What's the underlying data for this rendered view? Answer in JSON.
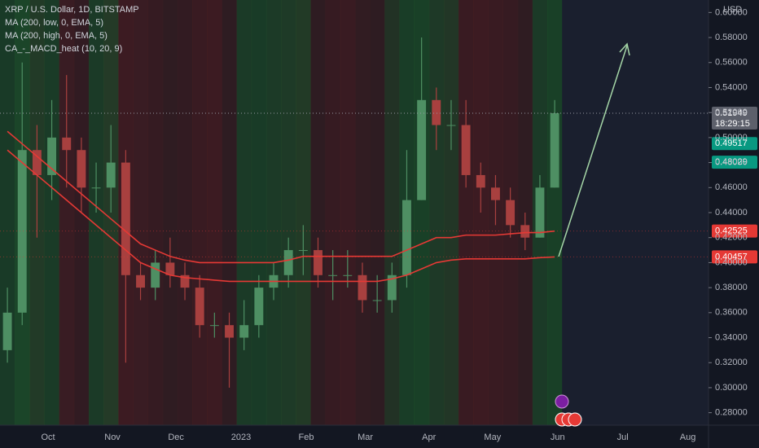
{
  "chart_data": {
    "type": "candlestick",
    "title": "XRP / U.S. Dollar, 1D, BITSTAMP",
    "axis_unit": "USD",
    "categories": [
      null,
      null,
      null,
      null,
      null,
      null,
      null,
      null,
      null,
      null,
      null,
      null,
      null,
      null,
      null,
      null,
      null,
      null,
      null,
      null,
      null,
      null,
      null,
      null,
      null,
      null,
      null,
      null,
      null,
      null,
      null,
      null,
      null,
      null,
      null,
      null,
      null,
      null
    ],
    "open": [
      0.33,
      0.36,
      0.49,
      0.47,
      0.5,
      0.49,
      0.46,
      0.46,
      0.48,
      0.39,
      0.38,
      0.4,
      0.39,
      0.38,
      0.35,
      0.35,
      0.34,
      0.35,
      0.38,
      0.39,
      0.41,
      0.41,
      0.39,
      0.39,
      0.39,
      0.37,
      0.37,
      0.39,
      0.45,
      0.53,
      0.51,
      0.51,
      0.47,
      0.46,
      0.45,
      0.43,
      0.42,
      0.46
    ],
    "high": [
      0.38,
      0.56,
      0.51,
      0.53,
      0.55,
      0.5,
      0.48,
      0.51,
      0.49,
      0.4,
      0.41,
      0.42,
      0.4,
      0.39,
      0.36,
      0.36,
      0.37,
      0.39,
      0.4,
      0.42,
      0.43,
      0.42,
      0.41,
      0.41,
      0.4,
      0.39,
      0.4,
      0.49,
      0.58,
      0.54,
      0.53,
      0.53,
      0.48,
      0.47,
      0.46,
      0.44,
      0.47,
      0.53
    ],
    "low": [
      0.32,
      0.35,
      0.42,
      0.45,
      0.46,
      0.44,
      0.44,
      0.44,
      0.32,
      0.37,
      0.37,
      0.38,
      0.37,
      0.34,
      0.34,
      0.3,
      0.33,
      0.34,
      0.37,
      0.38,
      0.39,
      0.38,
      0.37,
      0.38,
      0.36,
      0.36,
      0.36,
      0.38,
      0.45,
      0.49,
      0.49,
      0.46,
      0.44,
      0.43,
      0.42,
      0.41,
      0.42,
      0.46
    ],
    "close": [
      0.36,
      0.49,
      0.47,
      0.5,
      0.49,
      0.46,
      0.46,
      0.48,
      0.39,
      0.38,
      0.4,
      0.39,
      0.38,
      0.35,
      0.35,
      0.34,
      0.35,
      0.38,
      0.39,
      0.41,
      0.41,
      0.39,
      0.39,
      0.39,
      0.37,
      0.37,
      0.39,
      0.45,
      0.53,
      0.51,
      0.51,
      0.47,
      0.46,
      0.45,
      0.43,
      0.42,
      0.46,
      0.51949
    ],
    "up_color": "#4e8f63",
    "down_color": "#a8403f",
    "heat": [
      "#1d4a2a",
      "#1f5a2c",
      "#2a4a2a",
      "#1e4c2a",
      "#4a1f24",
      "#3e1e22",
      "#1f4a2a",
      "#2c4a2a",
      "#4e1e22",
      "#4a1f24",
      "#441e22",
      "#3c1f22",
      "#401e22",
      "#4a1e22",
      "#4e1e22",
      "#3a1f22",
      "#1f4a2a",
      "#1d4c2a",
      "#214a2a",
      "#244a2a",
      "#2a4a28",
      "#3a1f22",
      "#461e22",
      "#4a1e22",
      "#3e1f22",
      "#3a1f22",
      "#2a3e26",
      "#1d4e2a",
      "#1d522a",
      "#24482a",
      "#2a4428",
      "#4a1e22",
      "#4e1e22",
      "#4a1e22",
      "#461e22",
      "#3c1f22",
      "#1f4a2a",
      "#1d522a"
    ],
    "series": [
      {
        "name": "MA (200, low, 0, EMA, 5)",
        "color": "#e53935",
        "values": [
          0.49,
          0.48,
          0.47,
          0.46,
          0.45,
          0.44,
          0.43,
          0.42,
          0.41,
          0.4,
          0.395,
          0.39,
          0.388,
          0.387,
          0.386,
          0.385,
          0.385,
          0.385,
          0.385,
          0.385,
          0.385,
          0.385,
          0.385,
          0.385,
          0.385,
          0.385,
          0.387,
          0.39,
          0.395,
          0.4,
          0.402,
          0.403,
          0.403,
          0.403,
          0.403,
          0.403,
          0.404,
          0.40457
        ]
      },
      {
        "name": "MA (200, high, 0, EMA, 5)",
        "color": "#e53935",
        "values": [
          0.505,
          0.495,
          0.485,
          0.475,
          0.465,
          0.455,
          0.445,
          0.435,
          0.425,
          0.415,
          0.41,
          0.405,
          0.402,
          0.4,
          0.4,
          0.4,
          0.4,
          0.4,
          0.4,
          0.402,
          0.405,
          0.405,
          0.405,
          0.405,
          0.405,
          0.405,
          0.405,
          0.41,
          0.415,
          0.42,
          0.42,
          0.422,
          0.422,
          0.422,
          0.423,
          0.424,
          0.424,
          0.42525
        ]
      }
    ],
    "indicator": "CA_-_MACD_heat (10, 20, 9)",
    "price_markers": [
      {
        "value": 0.49517,
        "color": "#089981"
      },
      {
        "value": 0.48029,
        "color": "#089981"
      }
    ],
    "countdown": "18:29:15",
    "ylim": [
      0.27,
      0.61
    ],
    "yticks": [
      {
        "value": 0.28,
        "label": "0.28000"
      },
      {
        "value": 0.3,
        "label": "0.30000"
      },
      {
        "value": 0.32,
        "label": "0.32000"
      },
      {
        "value": 0.34,
        "label": "0.34000"
      },
      {
        "value": 0.36,
        "label": "0.36000"
      },
      {
        "value": 0.38,
        "label": "0.38000"
      },
      {
        "value": 0.4,
        "label": "0.40000"
      },
      {
        "value": 0.42,
        "label": "0.42000"
      },
      {
        "value": 0.44,
        "label": "0.44000"
      },
      {
        "value": 0.46,
        "label": "0.46000"
      },
      {
        "value": 0.48,
        "label": "0.48000"
      },
      {
        "value": 0.5,
        "label": "0.50000"
      },
      {
        "value": 0.52,
        "label": "0.52000"
      },
      {
        "value": 0.54,
        "label": "0.54000"
      },
      {
        "value": 0.56,
        "label": "0.56000"
      },
      {
        "value": 0.58,
        "label": "0.58000"
      },
      {
        "value": 0.6,
        "label": "0.60000"
      }
    ],
    "xlim": [
      -0.5,
      47.4
    ],
    "xticks": [
      {
        "value": 2.75,
        "label": "Oct"
      },
      {
        "value": 7.1,
        "label": "Nov"
      },
      {
        "value": 11.4,
        "label": "Dec"
      },
      {
        "value": 15.8,
        "label": "2023"
      },
      {
        "value": 20.2,
        "label": "Feb"
      },
      {
        "value": 24.2,
        "label": "Mar"
      },
      {
        "value": 28.5,
        "label": "Apr"
      },
      {
        "value": 32.8,
        "label": "May"
      },
      {
        "value": 37.2,
        "label": "Jun"
      },
      {
        "value": 41.6,
        "label": "Jul"
      },
      {
        "value": 46.0,
        "label": "Aug"
      }
    ],
    "grid": false
  }
}
